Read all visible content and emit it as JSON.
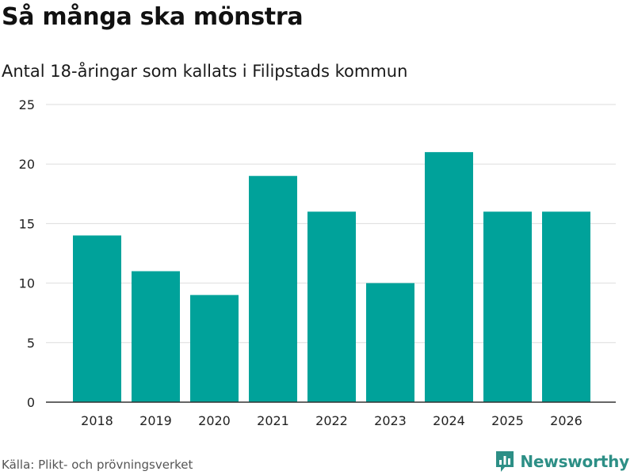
{
  "title": "Så många ska mönstra",
  "subtitle": "Antal 18-åringar som kallats i Filipstads kommun",
  "source": "Källa: Plikt- och prövningsverket",
  "brand": {
    "name": "Newsworthy",
    "icon": "bar-chart-badge-icon"
  },
  "colors": {
    "bar": "#00a29a",
    "grid": "#dddddd",
    "axis": "#333333",
    "brand": "#2d8f86"
  },
  "chart_data": {
    "type": "bar",
    "categories": [
      "2018",
      "2019",
      "2020",
      "2021",
      "2022",
      "2023",
      "2024",
      "2025",
      "2026"
    ],
    "values": [
      14,
      11,
      9,
      19,
      16,
      10,
      21,
      16,
      16
    ],
    "yticks": [
      "0",
      "5",
      "10",
      "15",
      "20",
      "25"
    ],
    "ylim": [
      0,
      25
    ],
    "title": "Så många ska mönstra",
    "subtitle": "Antal 18-åringar som kallats i Filipstads kommun",
    "xlabel": "",
    "ylabel": "",
    "grid": true,
    "legend": "none"
  }
}
